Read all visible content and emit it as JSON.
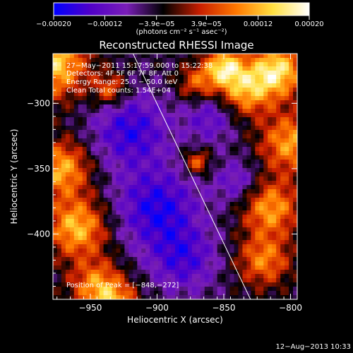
{
  "chart_data": {
    "type": "heatmap",
    "title": "Reconstructed RHESSI Image",
    "xlabel": "Heliocentric X (arcsec)",
    "ylabel": "Heliocentric Y (arcsec)",
    "xlim": [
      -978,
      -795
    ],
    "ylim": [
      -450,
      -262
    ],
    "x_ticks": [
      -950,
      -900,
      -850,
      -800
    ],
    "x_tick_labels": [
      "−950",
      "−900",
      "−850",
      "−800"
    ],
    "y_ticks": [
      -300,
      -350,
      -400
    ],
    "y_tick_labels": [
      "−300",
      "−350",
      "−400"
    ],
    "colorbar": {
      "range": [
        -0.0002,
        0.0002
      ],
      "ticks": [
        -0.0002,
        -0.00012,
        -3.9e-05,
        3.9e-05,
        0.00012,
        0.0002
      ],
      "tick_labels": [
        "−0.00020",
        "−0.00012",
        "−3.9e−05",
        "3.9e−05",
        "0.00012",
        "0.00020"
      ],
      "unit_label": "(photons cm⁻² s⁻¹ asec⁻²)",
      "colors": [
        "#0000ff",
        "#5000c8",
        "#7a1eb8",
        "#000000",
        "#c81e00",
        "#ff7800",
        "#ffe040",
        "#ffffff"
      ]
    },
    "annotations": [
      "27−May−2011 15:17:59.000 to 15:22:38",
      "Detectors: 4F 5F 6F 7F 8F, Att 0",
      "Energy Range: 25.0 − 50.0 keV",
      "Clean     Total counts: 1.54E+04"
    ],
    "peak_label": "Position of Peak = [−848,−272]",
    "limb_line": {
      "x": [
        -918,
        -830
      ],
      "y": [
        -262,
        -450
      ]
    },
    "field": {
      "sources": [
        {
          "x": -978,
          "y": -270,
          "amp": 1.9,
          "sigma": 18
        },
        {
          "x": -972,
          "y": -350,
          "amp": 1.6,
          "sigma": 15
        },
        {
          "x": -960,
          "y": -395,
          "amp": 1.7,
          "sigma": 16
        },
        {
          "x": -945,
          "y": -440,
          "amp": 1.4,
          "sigma": 14
        },
        {
          "x": -930,
          "y": -455,
          "amp": 1.2,
          "sigma": 12
        },
        {
          "x": -810,
          "y": -275,
          "amp": 2.0,
          "sigma": 14
        },
        {
          "x": -835,
          "y": -290,
          "amp": 1.6,
          "sigma": 14
        },
        {
          "x": -800,
          "y": -330,
          "amp": 1.5,
          "sigma": 16
        },
        {
          "x": -815,
          "y": -380,
          "amp": 1.5,
          "sigma": 15
        },
        {
          "x": -820,
          "y": -420,
          "amp": 1.3,
          "sigma": 14
        },
        {
          "x": -870,
          "y": -345,
          "amp": 1.2,
          "sigma": 7
        },
        {
          "x": -870,
          "y": -285,
          "amp": 1.1,
          "sigma": 10
        },
        {
          "x": -850,
          "y": -272,
          "amp": 1.8,
          "sigma": 10
        },
        {
          "x": -935,
          "y": -290,
          "amp": 1.2,
          "sigma": 9
        },
        {
          "x": -920,
          "y": -320,
          "amp": -1.2,
          "sigma": 20
        },
        {
          "x": -900,
          "y": -380,
          "amp": -1.3,
          "sigma": 22
        },
        {
          "x": -880,
          "y": -420,
          "amp": -1.0,
          "sigma": 18
        },
        {
          "x": -860,
          "y": -310,
          "amp": -0.9,
          "sigma": 14
        },
        {
          "x": -840,
          "y": -360,
          "amp": -0.8,
          "sigma": 12
        }
      ],
      "base": -0.45
    }
  },
  "footer": {
    "date": "12−Aug−2013 10:33"
  }
}
